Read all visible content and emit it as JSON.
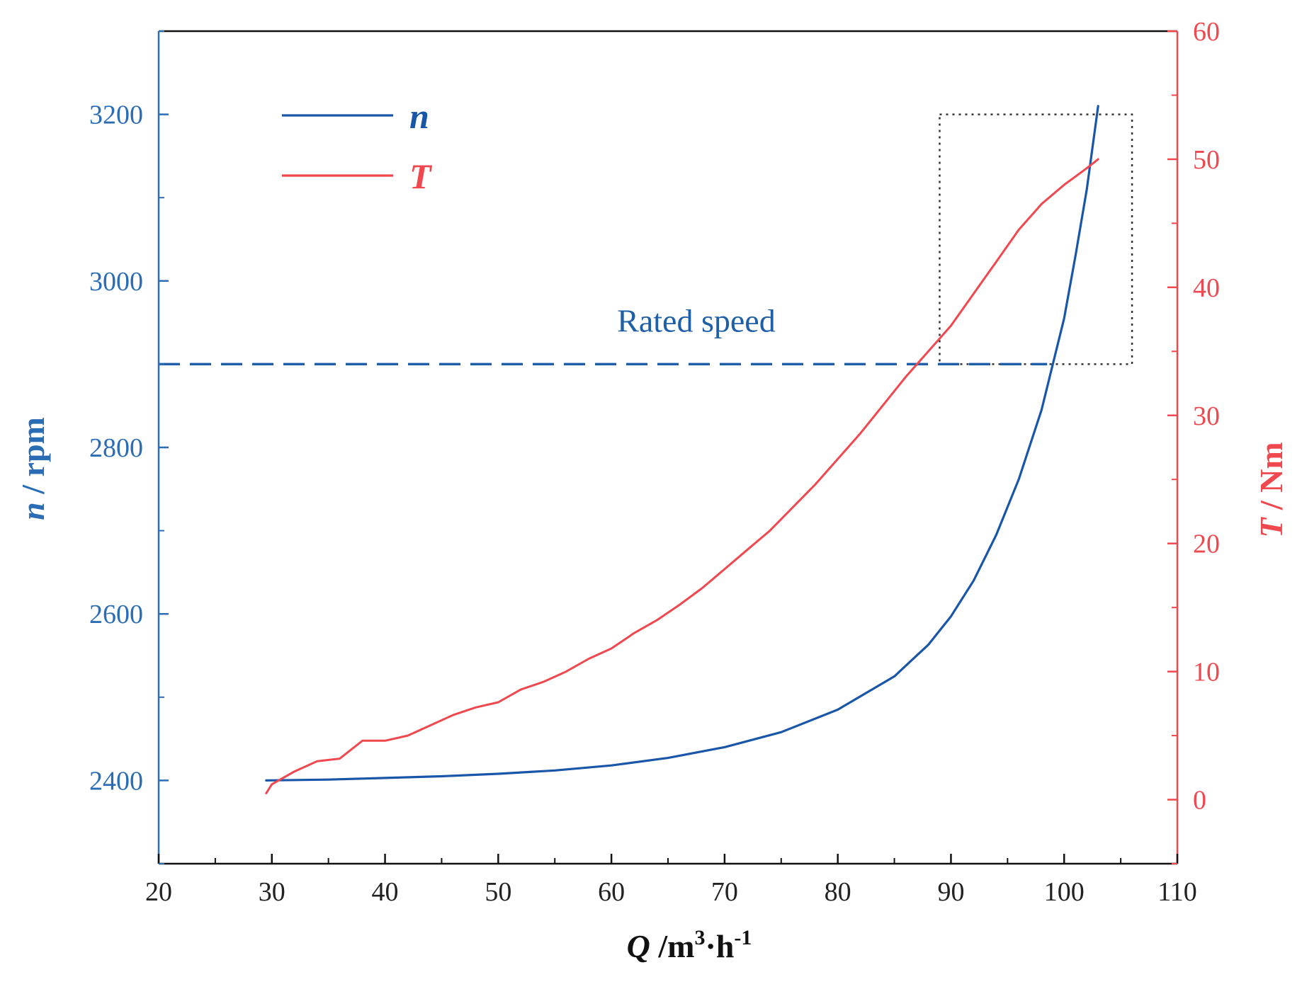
{
  "chart_data": {
    "type": "line",
    "dual_axis": true,
    "xlabel": {
      "italic": "Q",
      "rest": " /m",
      "sup1": "3",
      "mid": "·h",
      "sup2": "-1"
    },
    "ylabel_left": {
      "italic": "n",
      "rest": " / rpm"
    },
    "ylabel_right": {
      "italic": "T",
      "rest": " / Nm"
    },
    "xlim": [
      20,
      110
    ],
    "ylim_left": [
      2300,
      3300
    ],
    "ylim_right": [
      -5,
      60
    ],
    "x_ticks": [
      "20",
      "30",
      "40",
      "50",
      "60",
      "70",
      "80",
      "90",
      "100",
      "110"
    ],
    "y_left_ticks": [
      "2400",
      "2600",
      "2800",
      "3000",
      "3200"
    ],
    "y_right_ticks": [
      "0",
      "10",
      "20",
      "30",
      "40",
      "50",
      "60"
    ],
    "grid": false,
    "legend_position": "top-left",
    "colors": {
      "n": "#1a56a8",
      "T": "#f0484f",
      "left_axis": "#2a6db5",
      "right_axis": "#f0484f",
      "ref_line": "#1f5fa8",
      "box": "#333333"
    },
    "series": [
      {
        "name": "n",
        "axis": "left",
        "x": [
          29.5,
          35,
          40,
          45,
          50,
          55,
          60,
          65,
          70,
          75,
          80,
          85,
          88,
          90,
          92,
          94,
          96,
          98,
          100,
          101,
          102,
          103
        ],
        "y": [
          2400,
          2401,
          2403,
          2405,
          2408,
          2412,
          2418,
          2427,
          2440,
          2458,
          2485,
          2525,
          2563,
          2597,
          2640,
          2695,
          2762,
          2845,
          2955,
          3030,
          3110,
          3210
        ]
      },
      {
        "name": "T",
        "axis": "right",
        "x": [
          29.5,
          30,
          32,
          34,
          36,
          38,
          40,
          42,
          44,
          46,
          48,
          50,
          52,
          54,
          56,
          58,
          60,
          62,
          64,
          66,
          68,
          70,
          72,
          74,
          76,
          78,
          80,
          82,
          84,
          86,
          88,
          90,
          92,
          94,
          96,
          98,
          100,
          102,
          103
        ],
        "y": [
          0.5,
          1.2,
          2.2,
          3.0,
          3.2,
          4.6,
          4.6,
          5.0,
          5.8,
          6.6,
          7.2,
          7.6,
          8.6,
          9.2,
          10.0,
          11.0,
          11.8,
          13.0,
          14.0,
          15.2,
          16.5,
          18.0,
          19.5,
          21.0,
          22.8,
          24.6,
          26.6,
          28.6,
          30.8,
          33.0,
          35.0,
          37.0,
          39.5,
          42.0,
          44.5,
          46.5,
          48.0,
          49.3,
          50.0
        ]
      }
    ],
    "reference_line": {
      "label": "Rated speed",
      "axis": "left",
      "y": 2900,
      "style": "dashed"
    },
    "highlight_box": {
      "x": [
        89,
        106
      ],
      "y_left": [
        2900,
        3200
      ],
      "style": "dotted"
    }
  }
}
